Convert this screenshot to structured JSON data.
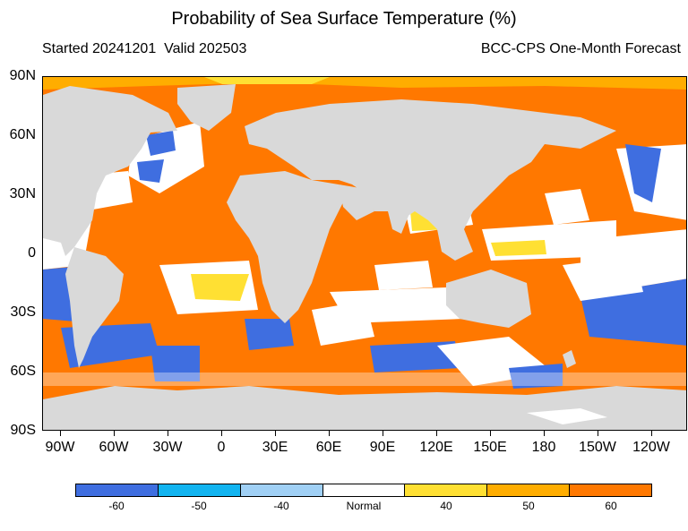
{
  "header": {
    "title": "Probability of Sea Surface Temperature (%)",
    "started": "Started 20241201",
    "valid": "Valid 202503",
    "model": "BCC-CPS One-Month Forecast"
  },
  "map": {
    "lat_labels": [
      "90N",
      "60N",
      "30N",
      "0",
      "30S",
      "60S",
      "90S"
    ],
    "lon_labels": [
      "90W",
      "60W",
      "30W",
      "0",
      "30E",
      "60E",
      "90E",
      "120E",
      "150E",
      "180",
      "150W",
      "120W"
    ],
    "colors": {
      "land": "#d9d9d9",
      "ocean_default": "#ff7800"
    }
  },
  "colorbar": {
    "segments": [
      {
        "color": "#3f6ee0"
      },
      {
        "color": "#12b4f0"
      },
      {
        "color": "#a0d0f5"
      },
      {
        "color": "#ffffff"
      },
      {
        "color": "#ffe033"
      },
      {
        "color": "#ffad00"
      },
      {
        "color": "#ff7800"
      }
    ],
    "labels": [
      "-60",
      "-50",
      "-40",
      "Normal",
      "40",
      "50",
      "60"
    ]
  }
}
